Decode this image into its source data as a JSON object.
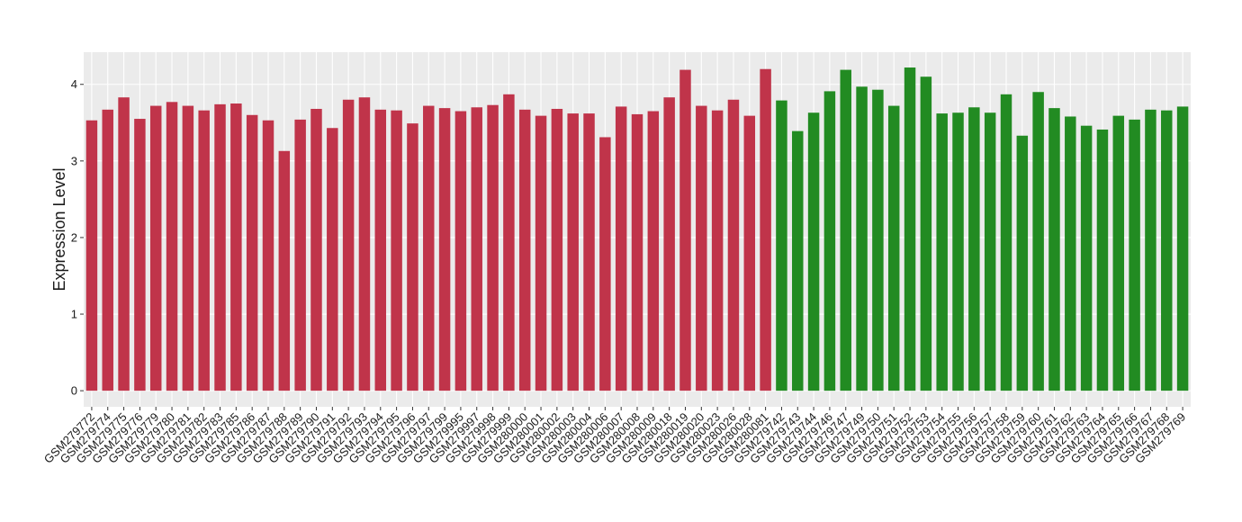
{
  "chart_data": {
    "type": "bar",
    "y_label": "Expression Level",
    "categories": [
      "GSM279772",
      "GSM279774",
      "GSM279775",
      "GSM279776",
      "GSM279779",
      "GSM279780",
      "GSM279781",
      "GSM279782",
      "GSM279783",
      "GSM279785",
      "GSM279786",
      "GSM279787",
      "GSM279788",
      "GSM279789",
      "GSM279790",
      "GSM279791",
      "GSM279792",
      "GSM279793",
      "GSM279794",
      "GSM279795",
      "GSM279796",
      "GSM279797",
      "GSM279799",
      "GSM279995",
      "GSM279997",
      "GSM279998",
      "GSM279999",
      "GSM280000",
      "GSM280001",
      "GSM280002",
      "GSM280003",
      "GSM280004",
      "GSM280006",
      "GSM280007",
      "GSM280008",
      "GSM280009",
      "GSM280018",
      "GSM280019",
      "GSM280020",
      "GSM280023",
      "GSM280026",
      "GSM280028",
      "GSM280081",
      "GSM279742",
      "GSM279743",
      "GSM279744",
      "GSM279746",
      "GSM279747",
      "GSM279749",
      "GSM279750",
      "GSM279751",
      "GSM279752",
      "GSM279753",
      "GSM279754",
      "GSM279755",
      "GSM279756",
      "GSM279757",
      "GSM279758",
      "GSM279759",
      "GSM279760",
      "GSM279761",
      "GSM279762",
      "GSM279763",
      "GSM279764",
      "GSM279765",
      "GSM279766",
      "GSM279767",
      "GSM279768",
      "GSM279769"
    ],
    "series": [
      {
        "color": "#c0344a",
        "values": [
          3.53,
          3.67,
          3.83,
          3.55,
          3.72,
          3.77,
          3.72,
          3.66,
          3.74,
          3.75,
          3.6,
          3.53,
          3.13,
          3.54,
          3.68,
          3.43,
          3.8,
          3.83,
          3.67,
          3.66,
          3.49,
          3.72,
          3.69,
          3.65,
          3.7,
          3.73,
          3.87,
          3.67,
          3.59,
          3.68,
          3.62,
          3.62,
          3.31,
          3.71,
          3.61,
          3.65,
          3.83,
          4.19,
          3.72,
          3.66,
          3.8,
          3.59,
          4.2,
          null,
          null,
          null,
          null,
          null,
          null,
          null,
          null,
          null,
          null,
          null,
          null,
          null,
          null,
          null,
          null,
          null,
          null,
          null,
          null,
          null,
          null,
          null,
          null,
          null,
          null
        ]
      },
      {
        "color": "#228b22",
        "values": [
          null,
          null,
          null,
          null,
          null,
          null,
          null,
          null,
          null,
          null,
          null,
          null,
          null,
          null,
          null,
          null,
          null,
          null,
          null,
          null,
          null,
          null,
          null,
          null,
          null,
          null,
          null,
          null,
          null,
          null,
          null,
          null,
          null,
          null,
          null,
          null,
          null,
          null,
          null,
          null,
          null,
          null,
          null,
          3.79,
          3.39,
          3.63,
          3.91,
          4.19,
          3.97,
          3.93,
          3.72,
          4.22,
          4.1,
          3.62,
          3.63,
          3.7,
          3.63,
          3.87,
          3.33,
          3.9,
          3.69,
          3.58,
          3.46,
          3.41,
          3.59,
          3.54,
          3.67,
          3.66,
          3.71
        ]
      }
    ],
    "ylim": [
      -0.21,
      4.42
    ],
    "yticks": [
      0,
      1,
      2,
      3,
      4
    ],
    "grid": true
  }
}
